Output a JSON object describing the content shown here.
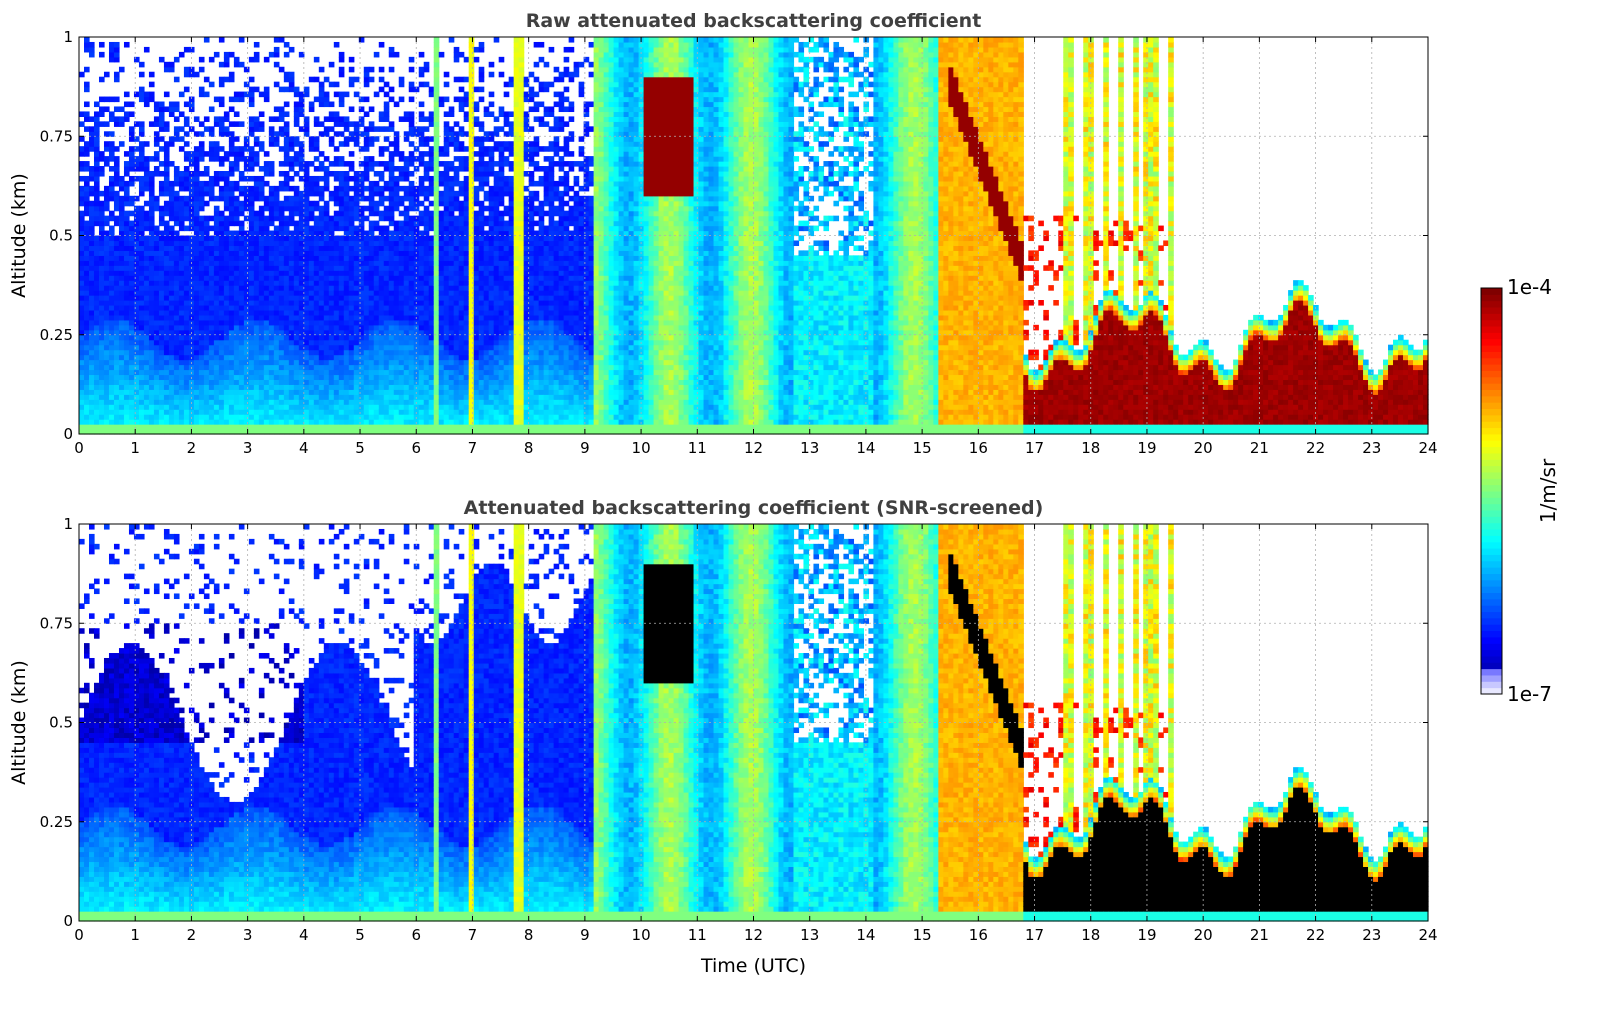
{
  "chart_data": [
    {
      "type": "heatmap",
      "title": "Raw attenuated backscattering coefficient",
      "xlabel": "",
      "ylabel": "Altitude (km)",
      "xlim": [
        0,
        24
      ],
      "ylim": [
        0,
        1
      ],
      "xticks": [
        "0",
        "1",
        "2",
        "3",
        "4",
        "5",
        "6",
        "7",
        "8",
        "9",
        "10",
        "11",
        "12",
        "13",
        "14",
        "15",
        "16",
        "17",
        "18",
        "19",
        "20",
        "21",
        "22",
        "23",
        "24"
      ],
      "yticks": [
        "0",
        "0.25",
        "0.5",
        "0.75",
        "1"
      ],
      "grid": true,
      "color_scale": "log",
      "features": [
        {
          "x_range": [
            0,
            9.2
          ],
          "description": "low signal ~1e-6 with noisy high altitudes"
        },
        {
          "x_range": [
            9.2,
            15.3
          ],
          "description": "elevated values ~1e-5"
        },
        {
          "x_range": [
            15.3,
            16.8
          ],
          "description": "strong values ~3e-5"
        },
        {
          "x_range": [
            16.8,
            24
          ],
          "description": "low cloud/aerosol layer below 0.3 km reaching 1e-4"
        }
      ]
    },
    {
      "type": "heatmap",
      "title": "Attenuated backscattering coefficient (SNR-screened)",
      "xlabel": "Time (UTC)",
      "ylabel": "Altitude (km)",
      "xlim": [
        0,
        24
      ],
      "ylim": [
        0,
        1
      ],
      "xticks": [
        "0",
        "1",
        "2",
        "3",
        "4",
        "5",
        "6",
        "7",
        "8",
        "9",
        "10",
        "11",
        "12",
        "13",
        "14",
        "15",
        "16",
        "17",
        "18",
        "19",
        "20",
        "21",
        "22",
        "23",
        "24"
      ],
      "yticks": [
        "0",
        "0.25",
        "0.5",
        "0.75",
        "1"
      ],
      "grid": true,
      "color_scale": "log"
    }
  ],
  "colorbar": {
    "label": "1/m/sr",
    "max_label": "1e-4",
    "min_label": "1e-7",
    "range": [
      1e-07,
      0.0001
    ],
    "colormap": "jet"
  }
}
